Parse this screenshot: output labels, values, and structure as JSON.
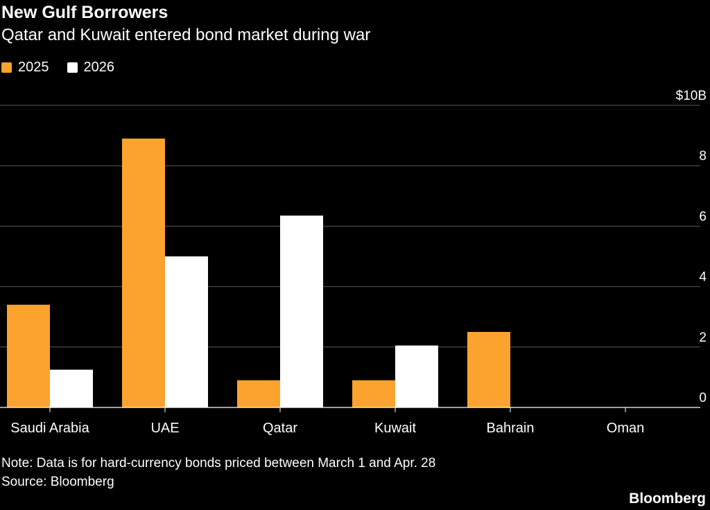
{
  "header": {
    "title": "New Gulf Borrowers",
    "subtitle": "Qatar and Kuwait entered bond market during war"
  },
  "footer": {
    "note": "Note: Data is for hard-currency bonds priced between March 1 and Apr. 28",
    "source": "Source: Bloomberg",
    "brand": "Bloomberg"
  },
  "chart_data": {
    "type": "bar",
    "title": "New Gulf Borrowers",
    "subtitle": "Qatar and Kuwait entered bond market during war",
    "categories": [
      "Saudi Arabia",
      "UAE",
      "Qatar",
      "Kuwait",
      "Bahrain",
      "Oman"
    ],
    "series": [
      {
        "name": "2025",
        "color": "#FBA22F",
        "values": [
          3.4,
          8.9,
          0.9,
          0.9,
          2.5,
          0
        ]
      },
      {
        "name": "2026",
        "color": "#FFFFFF",
        "values": [
          1.25,
          5.0,
          6.35,
          2.05,
          0,
          0
        ]
      }
    ],
    "ylim": [
      0,
      10
    ],
    "yticks": [
      0,
      2,
      4,
      6,
      8,
      10
    ],
    "ytick_labels": [
      "0",
      "2",
      "4",
      "6",
      "8",
      "$10B"
    ],
    "y_axis_side": "right",
    "grid": true,
    "legend_position": "top-left",
    "xlabel": "",
    "ylabel": ""
  }
}
